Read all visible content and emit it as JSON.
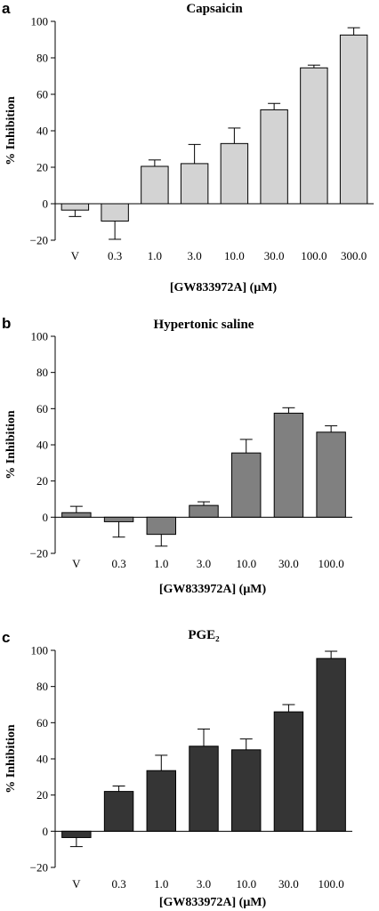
{
  "chart_data": [
    {
      "type": "bar",
      "panel": "a",
      "title": "Capsaicin",
      "ylabel": "% Inhibition",
      "xlabel": "[GW833972A] (μM)",
      "ylim": [
        -20,
        100
      ],
      "yticks": [
        -20,
        0,
        20,
        40,
        60,
        80,
        100
      ],
      "categories": [
        "V",
        "0.3",
        "1.0",
        "3.0",
        "10.0",
        "30.0",
        "100.0",
        "300.0"
      ],
      "values": [
        -3.5,
        -9.5,
        20.5,
        22,
        33,
        51.5,
        74.5,
        92.5
      ],
      "errors": [
        3.5,
        10,
        3.5,
        10.5,
        8.5,
        3.5,
        1.5,
        4
      ],
      "bar_color": "#d3d3d3"
    },
    {
      "type": "bar",
      "panel": "b",
      "title": "Hypertonic saline",
      "ylabel": "% Inhibition",
      "xlabel": "[GW833972A] (μM)",
      "ylim": [
        -20,
        100
      ],
      "yticks": [
        -20,
        0,
        20,
        40,
        60,
        80,
        100
      ],
      "categories": [
        "V",
        "0.3",
        "1.0",
        "3.0",
        "10.0",
        "30.0",
        "100.0"
      ],
      "values": [
        2.5,
        -2.5,
        -9.5,
        6.5,
        35.5,
        57.5,
        47
      ],
      "errors": [
        3.5,
        8.5,
        6.5,
        2,
        7.5,
        3,
        3.5
      ],
      "bar_color": "#808080"
    },
    {
      "type": "bar",
      "panel": "c",
      "title": "PGE₂",
      "ylabel": "% Inhibition",
      "xlabel": "[GW833972A] (μM)",
      "ylim": [
        -20,
        100
      ],
      "yticks": [
        -20,
        0,
        20,
        40,
        60,
        80,
        100
      ],
      "categories": [
        "V",
        "0.3",
        "1.0",
        "3.0",
        "10.0",
        "30.0",
        "100.0"
      ],
      "values": [
        -3.5,
        22,
        33.5,
        47,
        45,
        66,
        95.5
      ],
      "errors": [
        5,
        3,
        8.5,
        9.5,
        6,
        4,
        4
      ],
      "bar_color": "#353535"
    }
  ]
}
